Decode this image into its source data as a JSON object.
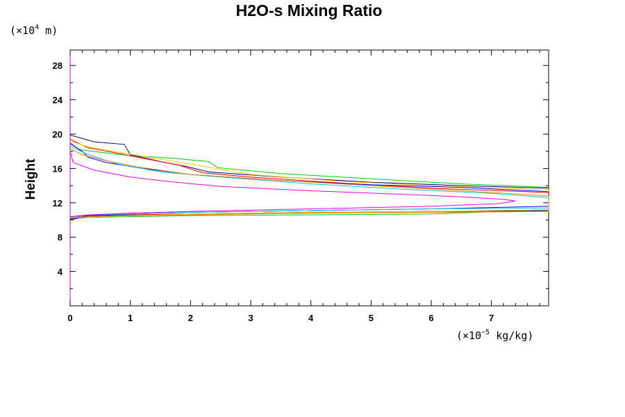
{
  "chart_data": {
    "type": "line",
    "title": "H2O-s Mixing Ratio",
    "ylabel": "Height",
    "xlabel": "",
    "x_unit": {
      "prefix": "(×10",
      "exponent": "−5",
      "suffix": " kg/kg)"
    },
    "y_unit": {
      "prefix": "(×10",
      "exponent": "4",
      "suffix": " m)"
    },
    "xlim": [
      0,
      7.95
    ],
    "ylim": [
      0,
      29.8
    ],
    "x_ticks": [
      0,
      1,
      2,
      3,
      4,
      5,
      6,
      7
    ],
    "y_ticks": [
      4,
      8,
      12,
      16,
      20,
      24,
      28
    ],
    "grid": false,
    "legend": "none",
    "series": [
      {
        "color": "#00cc00",
        "points": [
          [
            0,
            19.0
          ],
          [
            0.15,
            18.2
          ],
          [
            0.5,
            17.9
          ],
          [
            1.0,
            17.5
          ],
          [
            1.7,
            17.2
          ],
          [
            2.3,
            16.8
          ],
          [
            2.45,
            16.1
          ],
          [
            3.5,
            15.4
          ],
          [
            5,
            14.8
          ],
          [
            6.5,
            14.2
          ],
          [
            7.95,
            13.8
          ],
          [
            7.95,
            11.2
          ],
          [
            6,
            10.7
          ],
          [
            4,
            10.6
          ],
          [
            2,
            10.5
          ],
          [
            1,
            10.4
          ],
          [
            0.3,
            10.3
          ],
          [
            0,
            10.2
          ]
        ]
      },
      {
        "color": "#000080",
        "points": [
          [
            0,
            19.9
          ],
          [
            0.4,
            19.1
          ],
          [
            0.9,
            18.8
          ],
          [
            1.0,
            17.6
          ],
          [
            1.2,
            17.3
          ],
          [
            1.5,
            16.8
          ],
          [
            1.95,
            16.2
          ],
          [
            2.3,
            15.6
          ],
          [
            3.5,
            15.0
          ],
          [
            5,
            14.4
          ],
          [
            6.5,
            14.0
          ],
          [
            7.95,
            13.7
          ],
          [
            7.95,
            11.1
          ],
          [
            6,
            11.0
          ],
          [
            4,
            10.9
          ],
          [
            2,
            10.7
          ],
          [
            1,
            10.6
          ],
          [
            0.3,
            10.4
          ],
          [
            0,
            10.1
          ]
        ]
      },
      {
        "color": "#ff0000",
        "points": [
          [
            0,
            19.4
          ],
          [
            0.3,
            18.4
          ],
          [
            0.7,
            17.9
          ],
          [
            1.2,
            17.2
          ],
          [
            1.8,
            16.4
          ],
          [
            2.2,
            15.5
          ],
          [
            3.0,
            15.0
          ],
          [
            4.5,
            14.3
          ],
          [
            6,
            13.7
          ],
          [
            7.95,
            13.2
          ],
          [
            7.95,
            11.0
          ],
          [
            6,
            10.9
          ],
          [
            4,
            10.8
          ],
          [
            2,
            10.7
          ],
          [
            1,
            10.6
          ],
          [
            0.3,
            10.5
          ],
          [
            0,
            10.3
          ]
        ]
      },
      {
        "color": "#ffcc00",
        "points": [
          [
            0,
            19.2
          ],
          [
            0.3,
            18.5
          ],
          [
            0.8,
            17.9
          ],
          [
            1.4,
            17.2
          ],
          [
            2.0,
            16.5
          ],
          [
            3.0,
            15.3
          ],
          [
            4.5,
            14.5
          ],
          [
            6,
            14.0
          ],
          [
            7.95,
            13.5
          ],
          [
            7.95,
            11.2
          ],
          [
            6,
            11.0
          ],
          [
            4,
            10.9
          ],
          [
            2,
            10.7
          ],
          [
            1,
            10.5
          ],
          [
            0.3,
            10.4
          ],
          [
            0,
            10.2
          ]
        ]
      },
      {
        "color": "#0000ff",
        "points": [
          [
            0,
            18.9
          ],
          [
            0.2,
            18.0
          ],
          [
            0.3,
            17.3
          ],
          [
            0.6,
            16.7
          ],
          [
            1.2,
            16.0
          ],
          [
            2.0,
            15.3
          ],
          [
            3.5,
            14.6
          ],
          [
            5,
            14.1
          ],
          [
            6.5,
            13.8
          ],
          [
            7.95,
            13.3
          ],
          [
            7.95,
            11.6
          ],
          [
            6,
            11.3
          ],
          [
            4,
            11.1
          ],
          [
            2,
            10.9
          ],
          [
            1,
            10.7
          ],
          [
            0.3,
            10.5
          ],
          [
            0,
            10.0
          ]
        ]
      },
      {
        "color": "#00cccc",
        "points": [
          [
            0,
            18.6
          ],
          [
            0.3,
            17.6
          ],
          [
            0.8,
            16.5
          ],
          [
            1.5,
            15.6
          ],
          [
            2.5,
            15.0
          ],
          [
            4,
            14.2
          ],
          [
            5.5,
            13.6
          ],
          [
            7,
            13.1
          ],
          [
            7.95,
            12.6
          ],
          [
            7.95,
            11.4
          ],
          [
            6,
            11.3
          ],
          [
            4,
            11.1
          ],
          [
            2,
            10.9
          ],
          [
            1,
            10.7
          ],
          [
            0.3,
            10.6
          ],
          [
            0,
            10.3
          ]
        ]
      },
      {
        "color": "#ff8000",
        "points": [
          [
            0,
            18.3
          ],
          [
            0.2,
            17.6
          ],
          [
            0.6,
            16.9
          ],
          [
            1.1,
            16.2
          ],
          [
            2.0,
            15.3
          ],
          [
            3.5,
            14.6
          ],
          [
            5,
            14.0
          ],
          [
            6.5,
            13.4
          ],
          [
            7.95,
            12.8
          ],
          [
            7.95,
            11.0
          ],
          [
            6,
            10.9
          ],
          [
            4,
            10.8
          ],
          [
            2,
            10.6
          ],
          [
            1,
            10.5
          ],
          [
            0.3,
            10.4
          ],
          [
            0,
            10.2
          ]
        ]
      },
      {
        "color": "#ee00ee",
        "points": [
          [
            0,
            18.0
          ],
          [
            0.05,
            16.7
          ],
          [
            0.4,
            15.8
          ],
          [
            1.0,
            15.0
          ],
          [
            1.6,
            14.5
          ],
          [
            2.5,
            13.9
          ],
          [
            4,
            13.4
          ],
          [
            5.5,
            13.0
          ],
          [
            6.5,
            12.7
          ],
          [
            7.2,
            12.4
          ],
          [
            7.4,
            12.2
          ],
          [
            7.1,
            11.9
          ],
          [
            6,
            11.6
          ],
          [
            4,
            11.3
          ],
          [
            2,
            11.0
          ],
          [
            1,
            10.8
          ],
          [
            0.3,
            10.6
          ],
          [
            0,
            10.4
          ]
        ]
      }
    ]
  }
}
